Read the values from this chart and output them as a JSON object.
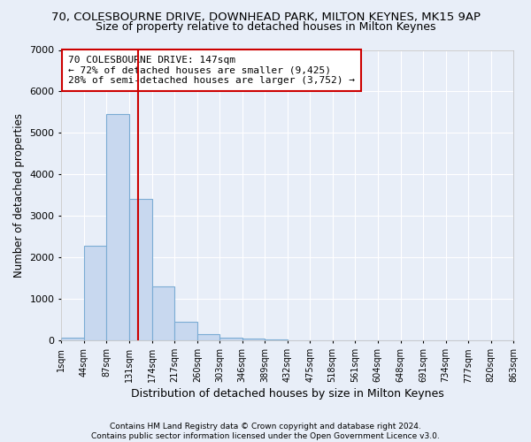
{
  "title_line1": "70, COLESBOURNE DRIVE, DOWNHEAD PARK, MILTON KEYNES, MK15 9AP",
  "title_line2": "Size of property relative to detached houses in Milton Keynes",
  "xlabel": "Distribution of detached houses by size in Milton Keynes",
  "ylabel": "Number of detached properties",
  "footer_line1": "Contains HM Land Registry data © Crown copyright and database right 2024.",
  "footer_line2": "Contains public sector information licensed under the Open Government Licence v3.0.",
  "annotation_line1": "70 COLESBOURNE DRIVE: 147sqm",
  "annotation_line2": "← 72% of detached houses are smaller (9,425)",
  "annotation_line3": "28% of semi-detached houses are larger (3,752) →",
  "bar_color": "#c8d8ef",
  "bar_edge_color": "#7bacd4",
  "ref_line_color": "#cc0000",
  "ref_line_x": 147,
  "bin_edges": [
    1,
    44,
    87,
    131,
    174,
    217,
    260,
    303,
    346,
    389,
    432,
    475,
    518,
    561,
    604,
    648,
    691,
    734,
    777,
    820,
    863
  ],
  "bin_counts": [
    75,
    2280,
    5460,
    3420,
    1310,
    460,
    155,
    80,
    55,
    30,
    10,
    5,
    0,
    0,
    0,
    0,
    0,
    0,
    0,
    0
  ],
  "ylim": [
    0,
    7000
  ],
  "yticks": [
    0,
    1000,
    2000,
    3000,
    4000,
    5000,
    6000,
    7000
  ],
  "background_color": "#e8eef8",
  "plot_background": "#e8eef8",
  "title_fontsize": 9.5,
  "subtitle_fontsize": 9,
  "grid_color": "#ffffff",
  "annotation_box_color": "#ffffff",
  "annotation_box_edge": "#cc0000"
}
